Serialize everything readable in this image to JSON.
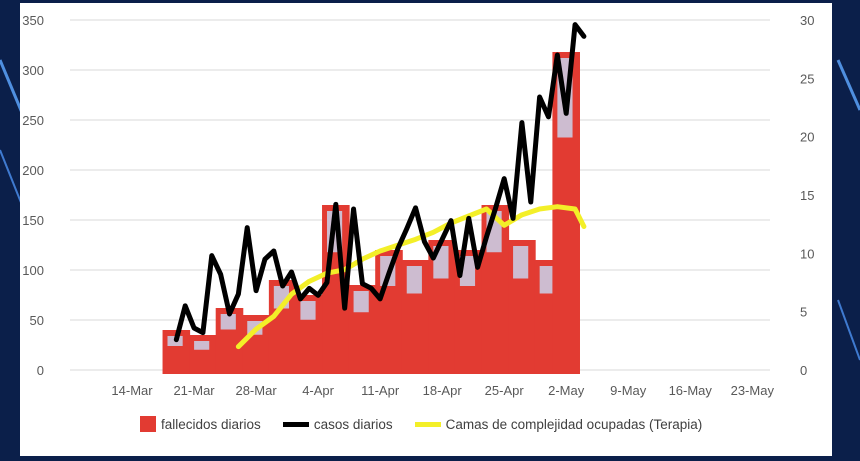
{
  "colors": {
    "bars": "#e23b32",
    "bar_hatch": "#c9d4ec",
    "cases_line": "#000000",
    "beds_line": "#f3ef28",
    "grid": "#d9d9d9",
    "background": "#0b1f4a"
  },
  "chart_data": {
    "type": "bar",
    "title": "",
    "x_ticks": [
      "14-Mar",
      "21-Mar",
      "28-Mar",
      "4-Apr",
      "11-Apr",
      "18-Apr",
      "25-Apr",
      "2-May",
      "9-May",
      "16-May",
      "23-May"
    ],
    "y_left": {
      "min": 0,
      "max": 350,
      "ticks": [
        0,
        50,
        100,
        150,
        200,
        250,
        300,
        350
      ]
    },
    "y_right": {
      "min": 0,
      "max": 30,
      "ticks": [
        0,
        5,
        10,
        15,
        20,
        25,
        30
      ]
    },
    "grid": true,
    "legend_position": "bottom",
    "series": [
      {
        "name": "fallecidos diarios",
        "type": "bar",
        "axis": "left",
        "x": [
          19,
          22,
          25,
          28,
          31,
          34,
          37,
          40,
          43,
          46,
          49,
          52,
          55,
          58,
          61,
          63
        ],
        "values": [
          40,
          35,
          62,
          55,
          90,
          75,
          165,
          85,
          120,
          110,
          130,
          120,
          165,
          130,
          110,
          318
        ]
      },
      {
        "name": "casos diarios",
        "type": "line",
        "axis": "right",
        "x": [
          19,
          20,
          21,
          22,
          23,
          24,
          25,
          26,
          27,
          28,
          29,
          30,
          31,
          32,
          33,
          34,
          35,
          36,
          37,
          38,
          39,
          40,
          41,
          42,
          43,
          44,
          45,
          46,
          47,
          48,
          49,
          50,
          51,
          52,
          53,
          54,
          55,
          56,
          57,
          58,
          59,
          60,
          61,
          62,
          63,
          64,
          65
        ],
        "values": [
          2.6,
          5.5,
          3.6,
          3.2,
          9.8,
          8.2,
          4.8,
          6.5,
          12.2,
          6.8,
          9.5,
          10.2,
          7.2,
          8.4,
          6.1,
          7.0,
          6.4,
          7.5,
          14.2,
          5.3,
          13.8,
          7.4,
          7.0,
          6.1,
          8.3,
          10.4,
          12.1,
          13.9,
          11.0,
          9.6,
          11.2,
          12.8,
          8.1,
          13.0,
          8.8,
          11.4,
          13.8,
          16.4,
          13.0,
          21.2,
          14.4,
          23.4,
          21.7,
          27.0,
          22.0,
          29.6,
          28.6
        ]
      },
      {
        "name": "Camas de complejidad ocupadas (Terapia)",
        "type": "line",
        "axis": "right",
        "x": [
          26,
          28,
          30,
          32,
          34,
          36,
          38,
          40,
          42,
          44,
          46,
          48,
          50,
          52,
          54,
          56,
          58,
          60,
          62,
          64,
          65
        ],
        "values": [
          2.0,
          3.5,
          4.6,
          6.5,
          7.6,
          8.3,
          8.6,
          9.5,
          10.2,
          10.7,
          11.2,
          11.8,
          12.6,
          13.2,
          13.8,
          12.4,
          13.3,
          13.8,
          14.0,
          13.8,
          12.3
        ]
      }
    ]
  }
}
